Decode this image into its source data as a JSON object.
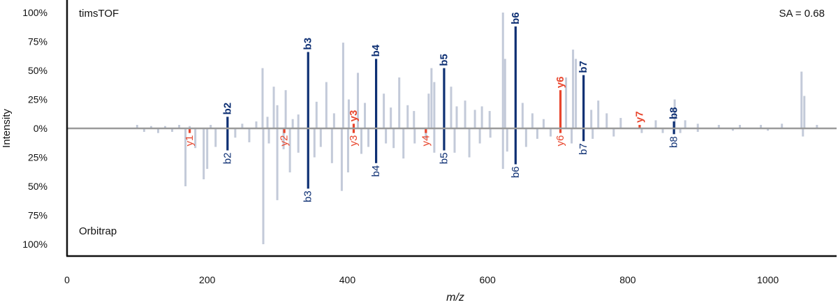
{
  "chart_data": {
    "type": "mirror-spectrum",
    "xlabel": "m/z",
    "ylabel": "Intensity",
    "top_label": "timsTOF",
    "bottom_label": "Orbitrap",
    "annotation": "SA = 0.68",
    "xlim": [
      0,
      1090
    ],
    "ylim": [
      -100,
      100
    ],
    "x_ticks": [
      0,
      200,
      400,
      600,
      800,
      1000
    ],
    "x_tick_labels": [
      "0",
      "200",
      "400",
      "600",
      "800",
      "1000"
    ],
    "y_ticks_top": [
      100,
      75,
      50,
      25,
      0
    ],
    "y_tick_labels_top": [
      "100%",
      "75%",
      "50%",
      "25%",
      "0%"
    ],
    "y_ticks_bottom": [
      25,
      50,
      75,
      100
    ],
    "y_tick_labels_bottom": [
      "25%",
      "50%",
      "75%",
      "100%"
    ],
    "colors": {
      "b_ion": "#0d2f73",
      "y_ion": "#e8452c",
      "unannotated": "#c3cad9",
      "baseline": "#9a9a9a",
      "axis": "#111111"
    },
    "top_annotated": [
      {
        "label": "b2",
        "mz": 229,
        "intensity": 10,
        "type": "b"
      },
      {
        "label": "b3",
        "mz": 344,
        "intensity": 66,
        "type": "b"
      },
      {
        "label": "y3",
        "mz": 409,
        "intensity": 4,
        "type": "y"
      },
      {
        "label": "b4",
        "mz": 441,
        "intensity": 60,
        "type": "b"
      },
      {
        "label": "b5",
        "mz": 538,
        "intensity": 52,
        "type": "b"
      },
      {
        "label": "b6",
        "mz": 640,
        "intensity": 88,
        "type": "b"
      },
      {
        "label": "y6",
        "mz": 704,
        "intensity": 33,
        "type": "y"
      },
      {
        "label": "b7",
        "mz": 737,
        "intensity": 46,
        "type": "b"
      },
      {
        "label": "y7",
        "mz": 817,
        "intensity": 3,
        "type": "y"
      },
      {
        "label": "b8",
        "mz": 866,
        "intensity": 6,
        "type": "b"
      }
    ],
    "bottom_annotated": [
      {
        "label": "y1",
        "mz": 175,
        "intensity": 4,
        "type": "y"
      },
      {
        "label": "b2",
        "mz": 229,
        "intensity": 19,
        "type": "b"
      },
      {
        "label": "y2",
        "mz": 310,
        "intensity": 4,
        "type": "y"
      },
      {
        "label": "b3",
        "mz": 344,
        "intensity": 52,
        "type": "b"
      },
      {
        "label": "y3",
        "mz": 409,
        "intensity": 4,
        "type": "y"
      },
      {
        "label": "y4",
        "mz": 512,
        "intensity": 4,
        "type": "y"
      },
      {
        "label": "b4",
        "mz": 441,
        "intensity": 30,
        "type": "b"
      },
      {
        "label": "b5",
        "mz": 538,
        "intensity": 19,
        "type": "b"
      },
      {
        "label": "b6",
        "mz": 640,
        "intensity": 31,
        "type": "b"
      },
      {
        "label": "y6",
        "mz": 704,
        "intensity": 4,
        "type": "y"
      },
      {
        "label": "b7",
        "mz": 737,
        "intensity": 11,
        "type": "b"
      },
      {
        "label": "b8",
        "mz": 866,
        "intensity": 5,
        "type": "b"
      }
    ],
    "top_unannotated": [
      [
        100,
        3
      ],
      [
        120,
        2
      ],
      [
        140,
        2
      ],
      [
        160,
        3
      ],
      [
        175,
        2
      ],
      [
        205,
        3
      ],
      [
        250,
        4
      ],
      [
        270,
        6
      ],
      [
        279,
        52
      ],
      [
        286,
        10
      ],
      [
        295,
        36
      ],
      [
        300,
        20
      ],
      [
        312,
        33
      ],
      [
        322,
        8
      ],
      [
        330,
        12
      ],
      [
        356,
        23
      ],
      [
        370,
        40
      ],
      [
        381,
        13
      ],
      [
        394,
        74
      ],
      [
        402,
        25
      ],
      [
        415,
        48
      ],
      [
        425,
        22
      ],
      [
        452,
        30
      ],
      [
        462,
        18
      ],
      [
        474,
        44
      ],
      [
        486,
        20
      ],
      [
        495,
        15
      ],
      [
        516,
        30
      ],
      [
        520,
        52
      ],
      [
        524,
        40
      ],
      [
        548,
        36
      ],
      [
        556,
        19
      ],
      [
        568,
        24
      ],
      [
        582,
        16
      ],
      [
        592,
        19
      ],
      [
        603,
        15
      ],
      [
        622,
        100
      ],
      [
        625,
        60
      ],
      [
        650,
        22
      ],
      [
        664,
        13
      ],
      [
        680,
        8
      ],
      [
        712,
        44
      ],
      [
        722,
        68
      ],
      [
        726,
        60
      ],
      [
        748,
        16
      ],
      [
        758,
        24
      ],
      [
        770,
        13
      ],
      [
        790,
        9
      ],
      [
        840,
        7
      ],
      [
        867,
        25
      ],
      [
        882,
        7
      ],
      [
        900,
        4
      ],
      [
        930,
        3
      ],
      [
        960,
        3
      ],
      [
        990,
        3
      ],
      [
        1020,
        4
      ],
      [
        1048,
        49
      ],
      [
        1052,
        28
      ],
      [
        1070,
        3
      ]
    ],
    "bottom_unannotated": [
      [
        110,
        3
      ],
      [
        130,
        4
      ],
      [
        150,
        3
      ],
      [
        169,
        50
      ],
      [
        183,
        17
      ],
      [
        195,
        44
      ],
      [
        200,
        35
      ],
      [
        212,
        16
      ],
      [
        240,
        8
      ],
      [
        260,
        12
      ],
      [
        280,
        100
      ],
      [
        288,
        13
      ],
      [
        300,
        62
      ],
      [
        309,
        18
      ],
      [
        318,
        38
      ],
      [
        330,
        21
      ],
      [
        353,
        25
      ],
      [
        362,
        16
      ],
      [
        378,
        30
      ],
      [
        392,
        54
      ],
      [
        401,
        38
      ],
      [
        420,
        22
      ],
      [
        430,
        16
      ],
      [
        455,
        13
      ],
      [
        466,
        17
      ],
      [
        480,
        26
      ],
      [
        496,
        13
      ],
      [
        512,
        9
      ],
      [
        524,
        21
      ],
      [
        553,
        21
      ],
      [
        574,
        25
      ],
      [
        589,
        13
      ],
      [
        604,
        8
      ],
      [
        622,
        35
      ],
      [
        628,
        20
      ],
      [
        655,
        16
      ],
      [
        671,
        9
      ],
      [
        690,
        7
      ],
      [
        720,
        13
      ],
      [
        750,
        9
      ],
      [
        780,
        7
      ],
      [
        820,
        4
      ],
      [
        850,
        4
      ],
      [
        875,
        4
      ],
      [
        900,
        3
      ],
      [
        950,
        2
      ],
      [
        1000,
        2
      ],
      [
        1050,
        7
      ]
    ]
  }
}
